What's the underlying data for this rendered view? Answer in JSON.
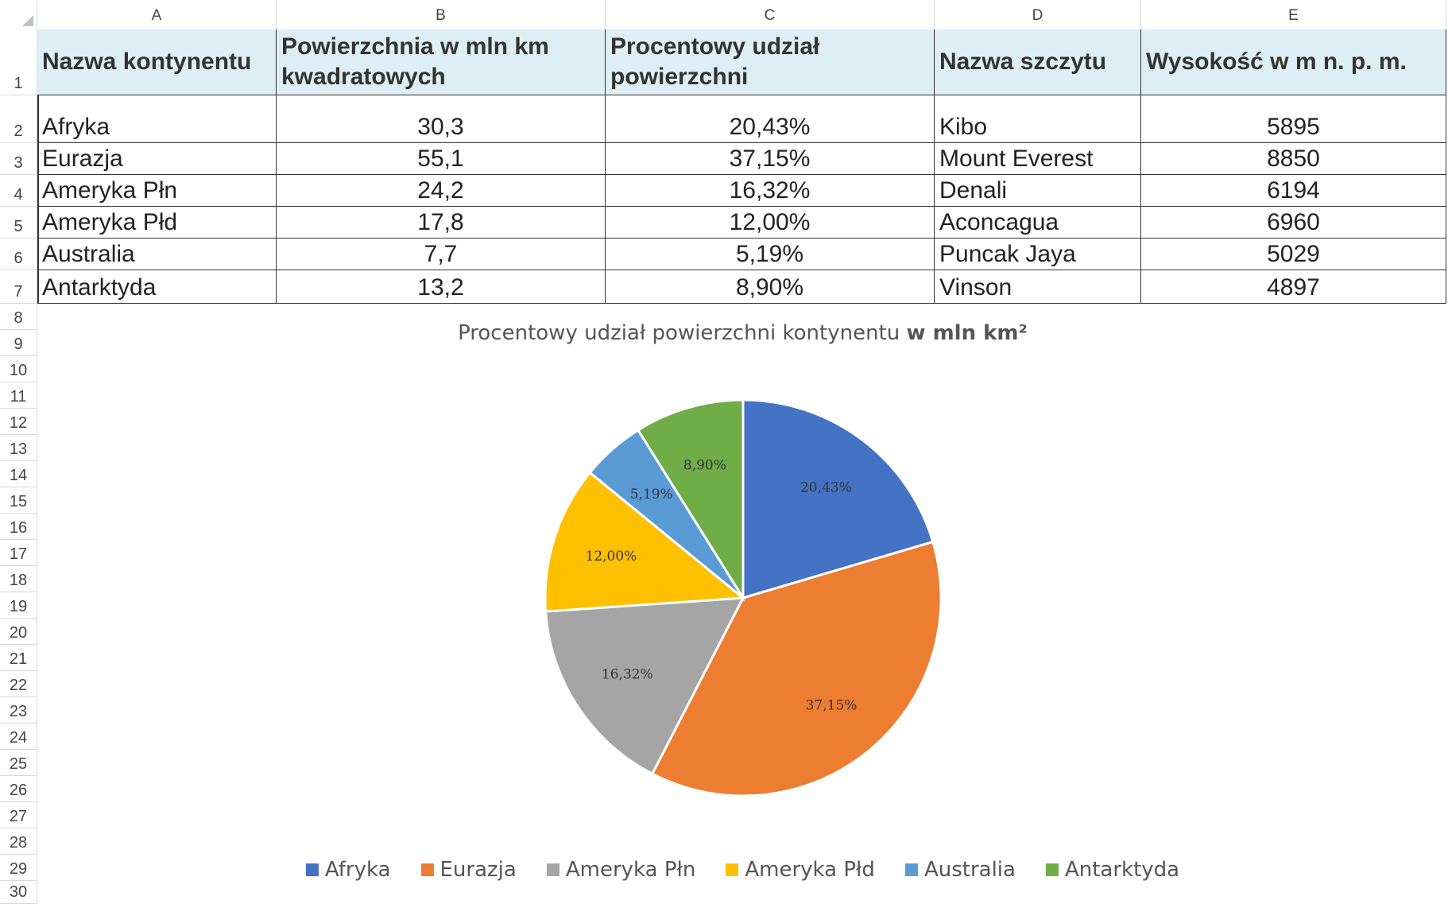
{
  "columns": [
    "A",
    "B",
    "C",
    "D",
    "E"
  ],
  "rows": [
    "1",
    "2",
    "3",
    "4",
    "5",
    "6",
    "7",
    "8",
    "9",
    "10",
    "11",
    "12",
    "13",
    "14",
    "15",
    "16",
    "17",
    "18",
    "19",
    "20",
    "21",
    "22",
    "23",
    "24",
    "25",
    "26",
    "27",
    "28",
    "29",
    "30"
  ],
  "table": {
    "headers": [
      "Nazwa kontynentu",
      "Powierzchnia w mln km kwadratowych",
      "Procentowy udział powierzchni",
      "Nazwa szczytu",
      "Wysokość w m n. p. m."
    ],
    "rows": [
      [
        "Afryka",
        "30,3",
        "20,43%",
        "Kibo",
        "5895"
      ],
      [
        "Eurazja",
        "55,1",
        "37,15%",
        "Mount Everest",
        "8850"
      ],
      [
        "Ameryka Płn",
        "24,2",
        "16,32%",
        "Denali",
        "6194"
      ],
      [
        "Ameryka Płd",
        "17,8",
        "12,00%",
        "Aconcagua",
        "6960"
      ],
      [
        "Australia",
        "7,7",
        "5,19%",
        "Puncak Jaya",
        "5029"
      ],
      [
        "Antarktyda",
        "13,2",
        "8,90%",
        "Vinson",
        "4897"
      ]
    ]
  },
  "chart_data": {
    "type": "pie",
    "title_main": "Procentowy udział powierzchni kontynentu ",
    "title_bold": "w mln km²",
    "categories": [
      "Afryka",
      "Eurazja",
      "Ameryka Płn",
      "Ameryka Płd",
      "Australia",
      "Antarktyda"
    ],
    "values": [
      20.43,
      37.15,
      16.32,
      12.0,
      5.19,
      8.9
    ],
    "labels": [
      "20,43%",
      "37,15%",
      "16,32%",
      "12,00%",
      "5,19%",
      "8,90%"
    ],
    "colors": [
      "#4472c4",
      "#ed7d31",
      "#a5a5a5",
      "#ffc000",
      "#5b9bd5",
      "#70ad47"
    ],
    "legend_position": "bottom"
  }
}
